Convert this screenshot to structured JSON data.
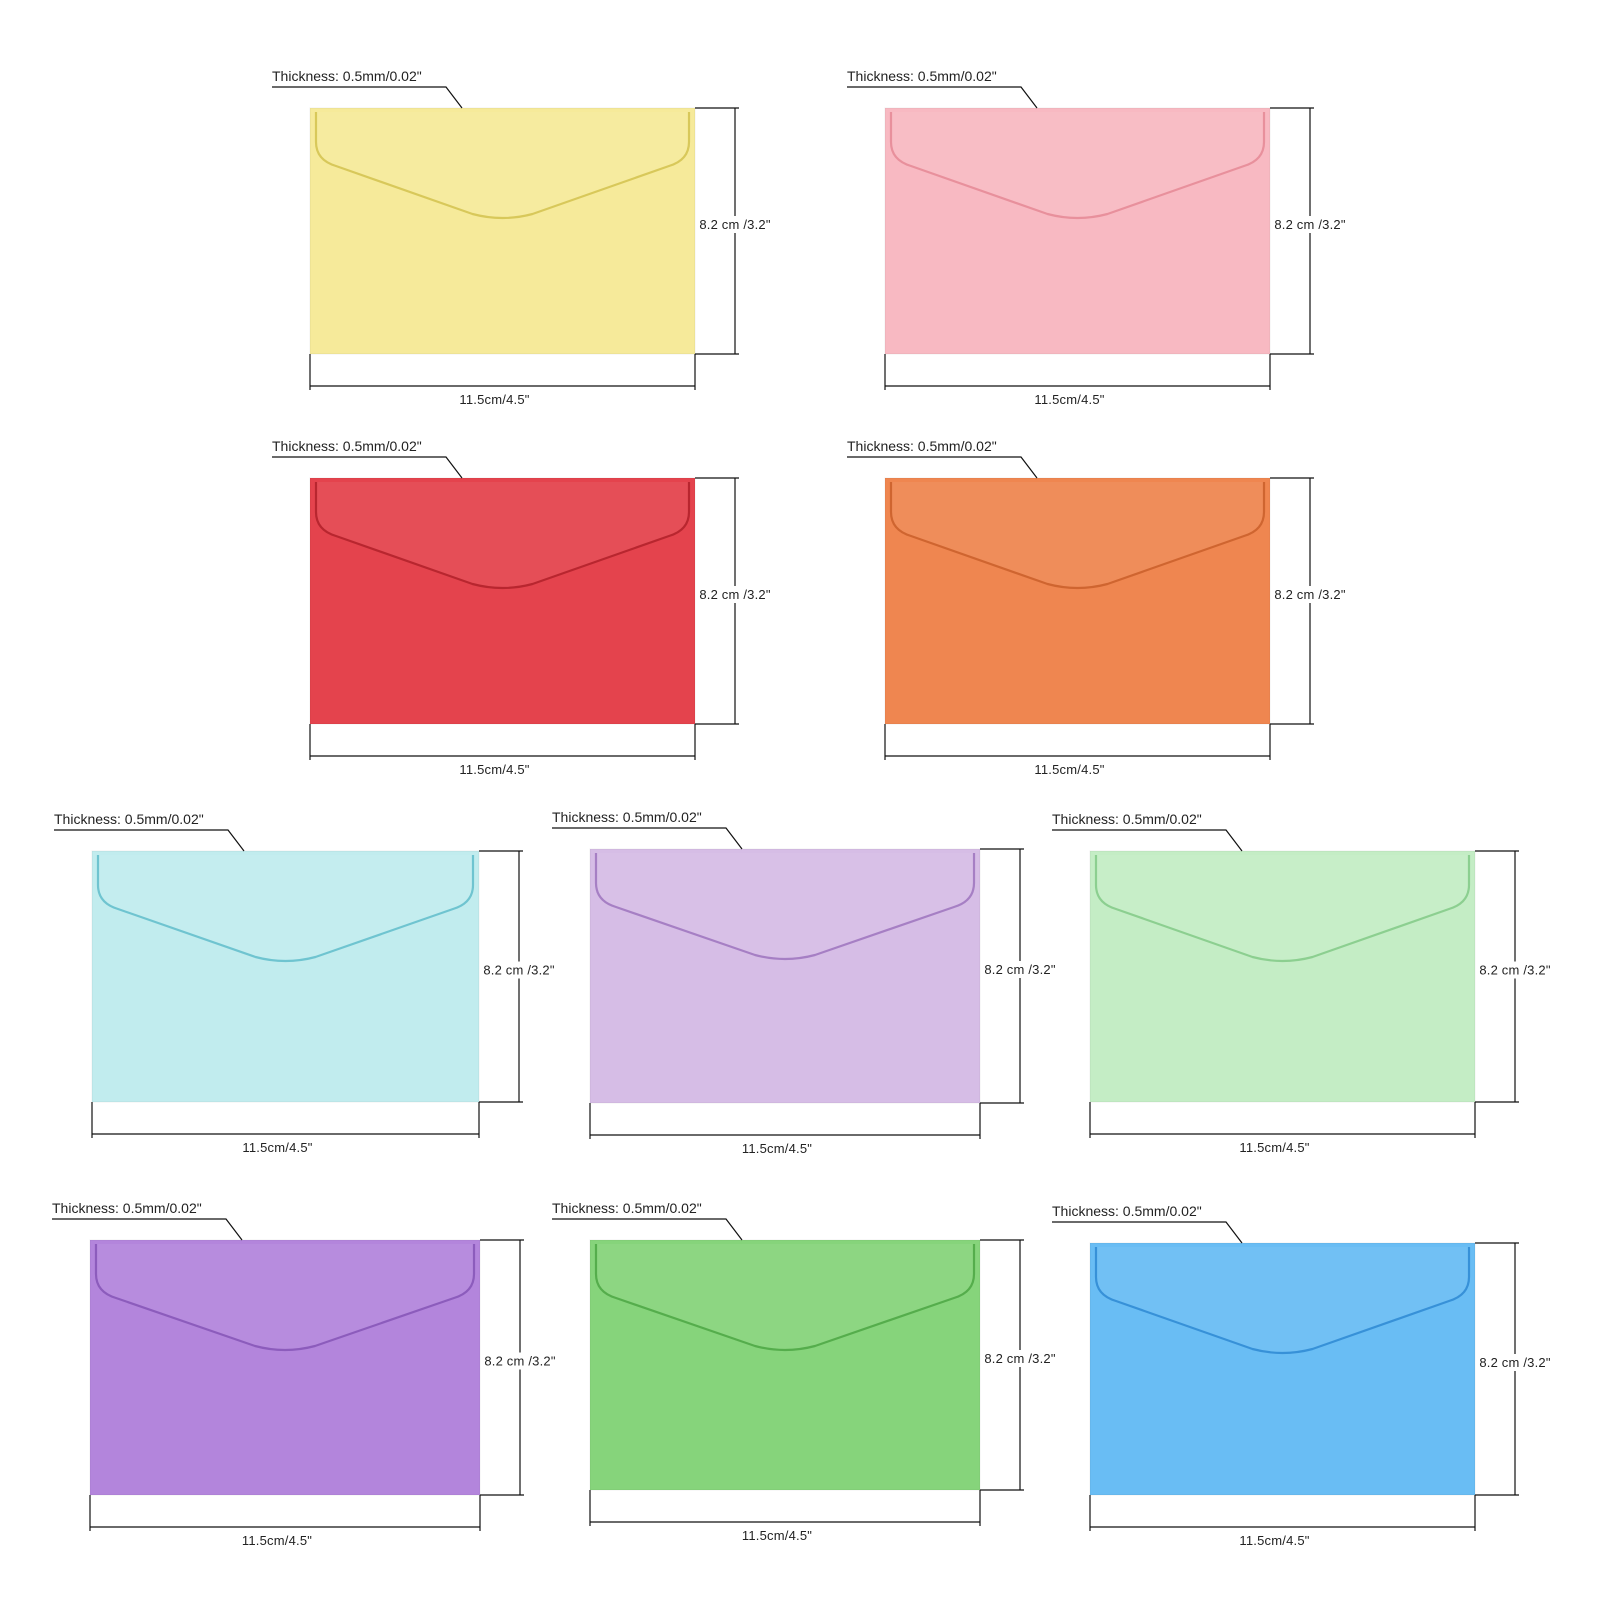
{
  "envelopes": [
    {
      "color": "#f6ea9a",
      "edge": "#d8c85a",
      "thickness": "Thickness: 0.5mm/0.02\"",
      "height": "8.2 cm /3.2\"",
      "width": "11.5cm/4.5\""
    },
    {
      "color": "#f8b9c2",
      "edge": "#e8909c",
      "thickness": "Thickness: 0.5mm/0.02\"",
      "height": "8.2 cm /3.2\"",
      "width": "11.5cm/4.5\""
    },
    {
      "color": "#e4434d",
      "edge": "#b8262f",
      "thickness": "Thickness: 0.5mm/0.02\"",
      "height": "8.2 cm /3.2\"",
      "width": "11.5cm/4.5\""
    },
    {
      "color": "#ef8650",
      "edge": "#cf6530",
      "thickness": "Thickness: 0.5mm/0.02\"",
      "height": "8.2 cm /3.2\"",
      "width": "11.5cm/4.5\""
    },
    {
      "color": "#c1ecee",
      "edge": "#6fc4d0",
      "thickness": "Thickness: 0.5mm/0.02\"",
      "height": "8.2 cm /3.2\"",
      "width": "11.5cm/4.5\""
    },
    {
      "color": "#d6bde6",
      "edge": "#a67fc4",
      "thickness": "Thickness: 0.5mm/0.02\"",
      "height": "8.2 cm /3.2\"",
      "width": "11.5cm/4.5\""
    },
    {
      "color": "#c4edc5",
      "edge": "#8ccf90",
      "thickness": "Thickness: 0.5mm/0.02\"",
      "height": "8.2 cm /3.2\"",
      "width": "11.5cm/4.5\""
    },
    {
      "color": "#b385dc",
      "edge": "#8c5cbc",
      "thickness": "Thickness: 0.5mm/0.02\"",
      "height": "8.2 cm /3.2\"",
      "width": "11.5cm/4.5\""
    },
    {
      "color": "#86d47b",
      "edge": "#55ad4c",
      "thickness": "Thickness: 0.5mm/0.02\"",
      "height": "8.2 cm /3.2\"",
      "width": "11.5cm/4.5\""
    },
    {
      "color": "#69bdf4",
      "edge": "#3791d8",
      "thickness": "Thickness: 0.5mm/0.02\"",
      "height": "8.2 cm /3.2\"",
      "width": "11.5cm/4.5\""
    }
  ]
}
